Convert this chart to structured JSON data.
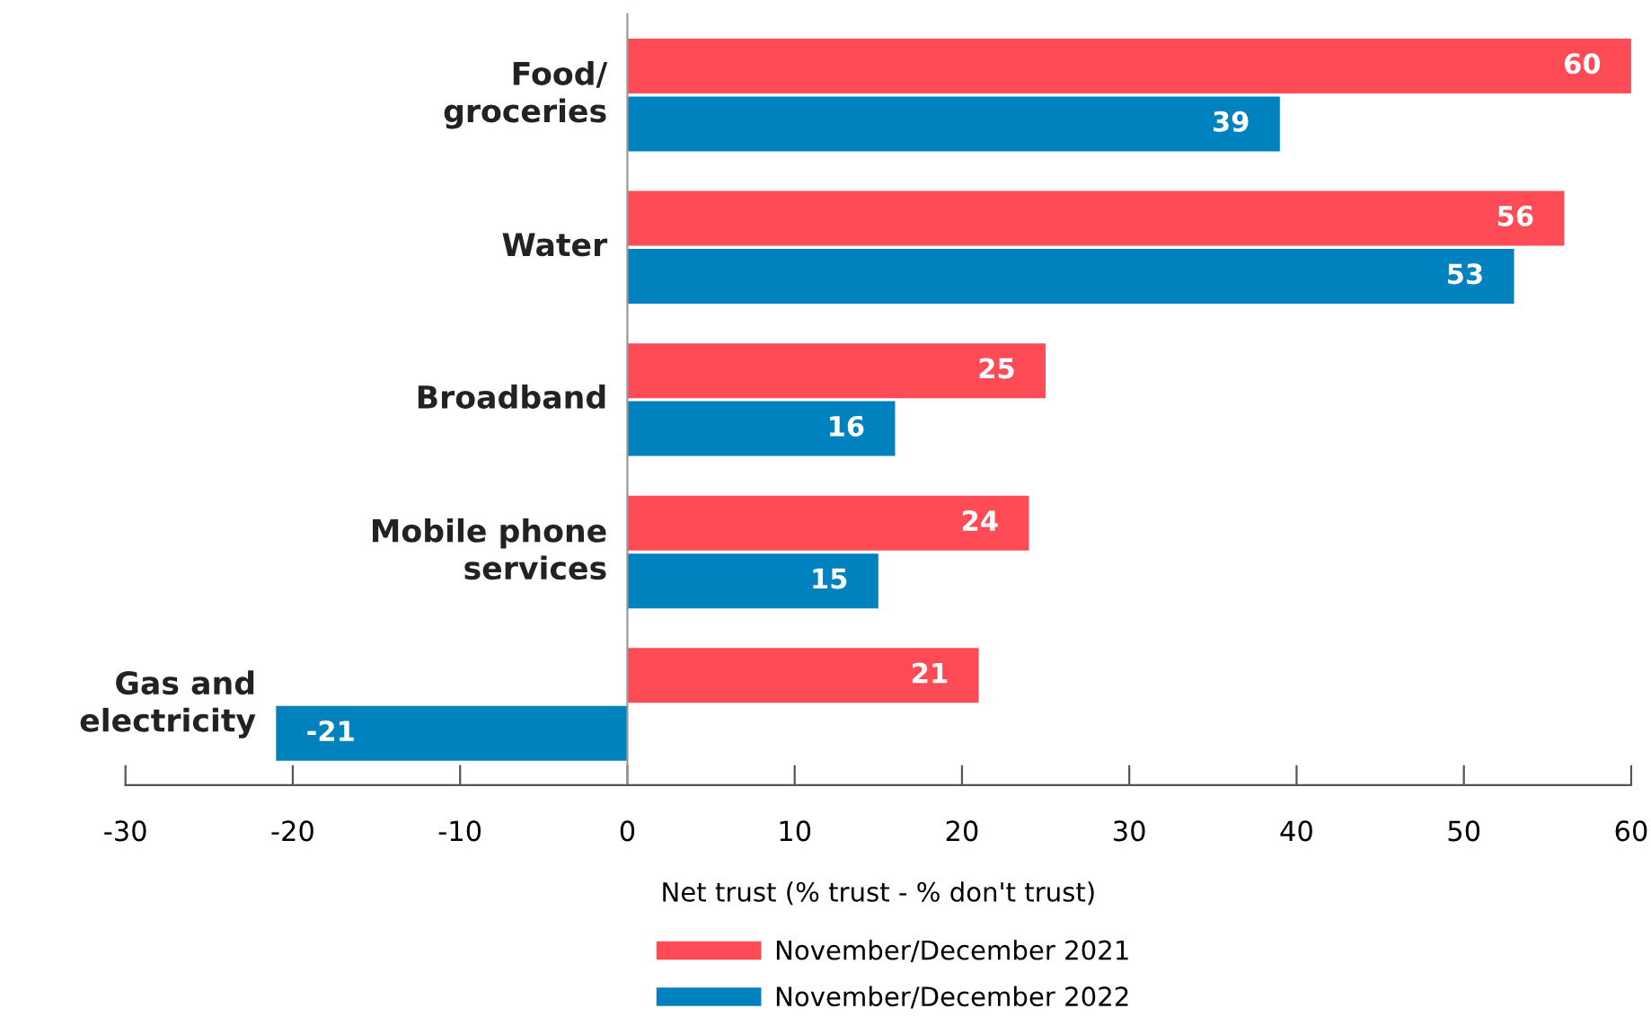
{
  "chart_data": {
    "type": "bar",
    "orientation": "horizontal",
    "categories": [
      "Food/\ngroceries",
      "Water",
      "Broadband",
      "Mobile phone\nservices",
      "Gas and\nelectricity"
    ],
    "series": [
      {
        "name": "November/December 2021",
        "color": "#ff4b55",
        "values": [
          60,
          56,
          25,
          24,
          21
        ]
      },
      {
        "name": "November/December 2022",
        "color": "#0082be",
        "values": [
          39,
          53,
          16,
          15,
          -21
        ]
      }
    ],
    "xlabel": "Net trust (% trust - % don't trust)",
    "xlim": [
      -30,
      60
    ],
    "xticks": [
      -30,
      -20,
      -10,
      0,
      10,
      20,
      30,
      40,
      50,
      60
    ],
    "data_labels": true,
    "grid": false,
    "legend": "bottom"
  }
}
